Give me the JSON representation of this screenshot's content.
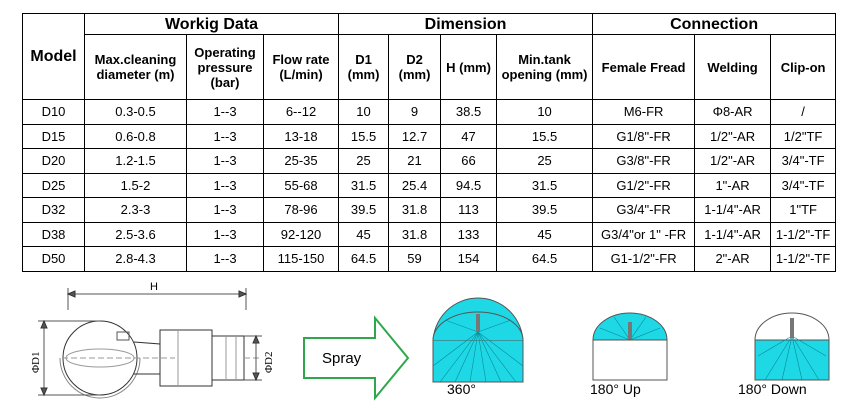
{
  "groups": {
    "model": "Model",
    "working": "Workig Data",
    "dimension": "Dimension",
    "connection": "Connection"
  },
  "columns": [
    "Max.cleaning diameter (m)",
    "Operating pressure (bar)",
    "Flow rate (L/min)",
    "D1 (mm)",
    "D2 (mm)",
    "H (mm)",
    "Min.tank opening (mm)",
    "Female Fread",
    "Welding",
    "Clip-on"
  ],
  "rows": [
    [
      "D10",
      "0.3-0.5",
      "1--3",
      "6--12",
      "10",
      "9",
      "38.5",
      "10",
      "M6-FR",
      "Φ8-AR",
      "/"
    ],
    [
      "D15",
      "0.6-0.8",
      "1--3",
      "13-18",
      "15.5",
      "12.7",
      "47",
      "15.5",
      "G1/8\"-FR",
      "1/2\"-AR",
      "1/2\"TF"
    ],
    [
      "D20",
      "1.2-1.5",
      "1--3",
      "25-35",
      "25",
      "21",
      "66",
      "25",
      "G3/8\"-FR",
      "1/2\"-AR",
      "3/4\"-TF"
    ],
    [
      "D25",
      "1.5-2",
      "1--3",
      "55-68",
      "31.5",
      "25.4",
      "94.5",
      "31.5",
      "G1/2\"-FR",
      "1\"-AR",
      "3/4\"-TF"
    ],
    [
      "D32",
      "2.3-3",
      "1--3",
      "78-96",
      "39.5",
      "31.8",
      "113",
      "39.5",
      "G3/4\"-FR",
      "1-1/4\"-AR",
      "1\"TF"
    ],
    [
      "D38",
      "2.5-3.6",
      "1--3",
      "92-120",
      "45",
      "31.8",
      "133",
      "45",
      "G3/4\"or 1\" -FR",
      "1-1/4\"-AR",
      "1-1/2\"-TF"
    ],
    [
      "D50",
      "2.8-4.3",
      "1--3",
      "115-150",
      "64.5",
      "59",
      "154",
      "64.5",
      "G1-1/2\"-FR",
      "2\"-AR",
      "1-1/2\"-TF"
    ]
  ],
  "drawing": {
    "length_label": "H",
    "d1_label": "ΦD1",
    "d2_label": "ΦD2",
    "arrow_label": "Spray",
    "pattern_360": "360°",
    "pattern_180_up": "180°  Up",
    "pattern_180_down": "180°  Down",
    "spray_color": "#1ed8e6"
  }
}
